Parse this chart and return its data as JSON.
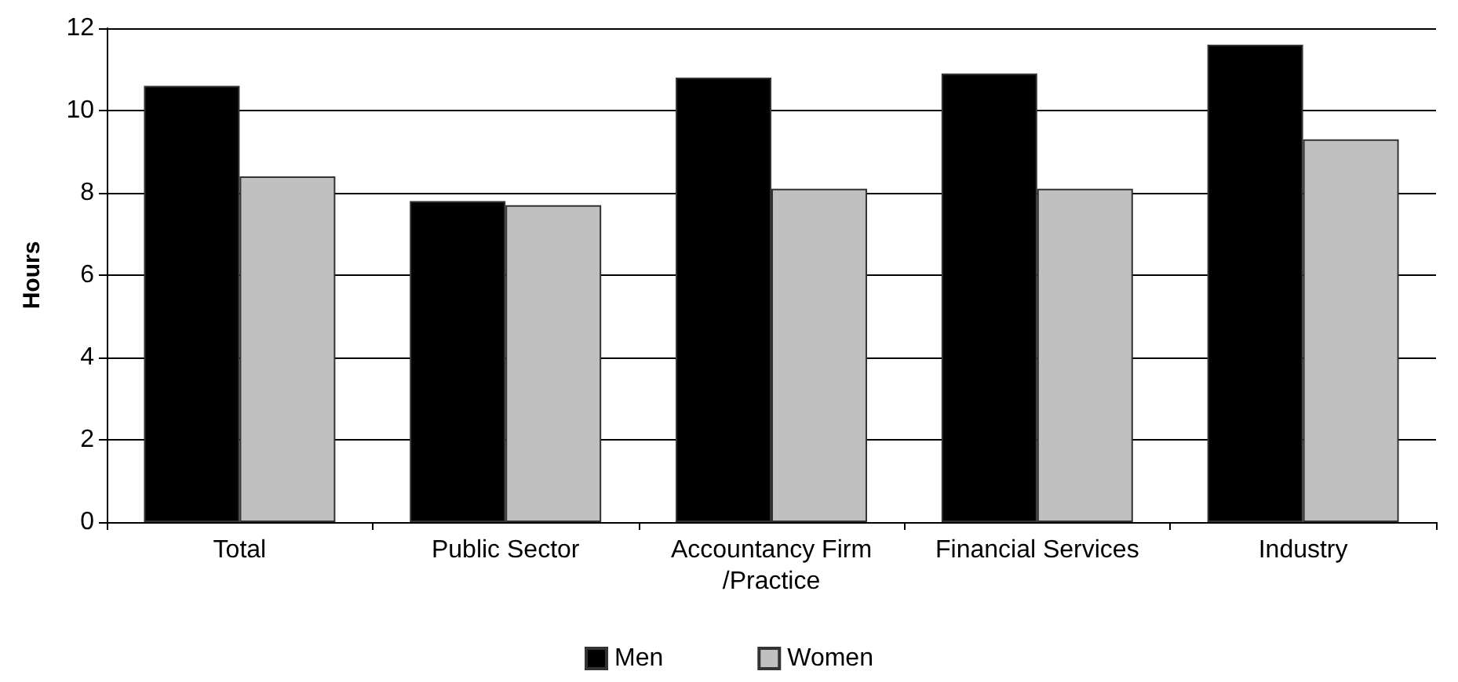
{
  "chart_data": {
    "type": "bar",
    "ylabel": "Hours",
    "categories": [
      "Total",
      "Public Sector",
      "Accountancy Firm/Practice",
      "Financial Services",
      "Industry"
    ],
    "series": [
      {
        "name": "Men",
        "color": "#000000",
        "values": [
          10.6,
          7.8,
          10.8,
          10.9,
          11.6
        ]
      },
      {
        "name": "Women",
        "color": "#c0c0c0",
        "values": [
          8.4,
          7.7,
          8.1,
          8.1,
          9.3
        ]
      }
    ],
    "ylim": [
      0,
      12
    ],
    "yticks": [
      0,
      2,
      4,
      6,
      8,
      10,
      12
    ],
    "grid": "y",
    "legend": "bottom"
  }
}
